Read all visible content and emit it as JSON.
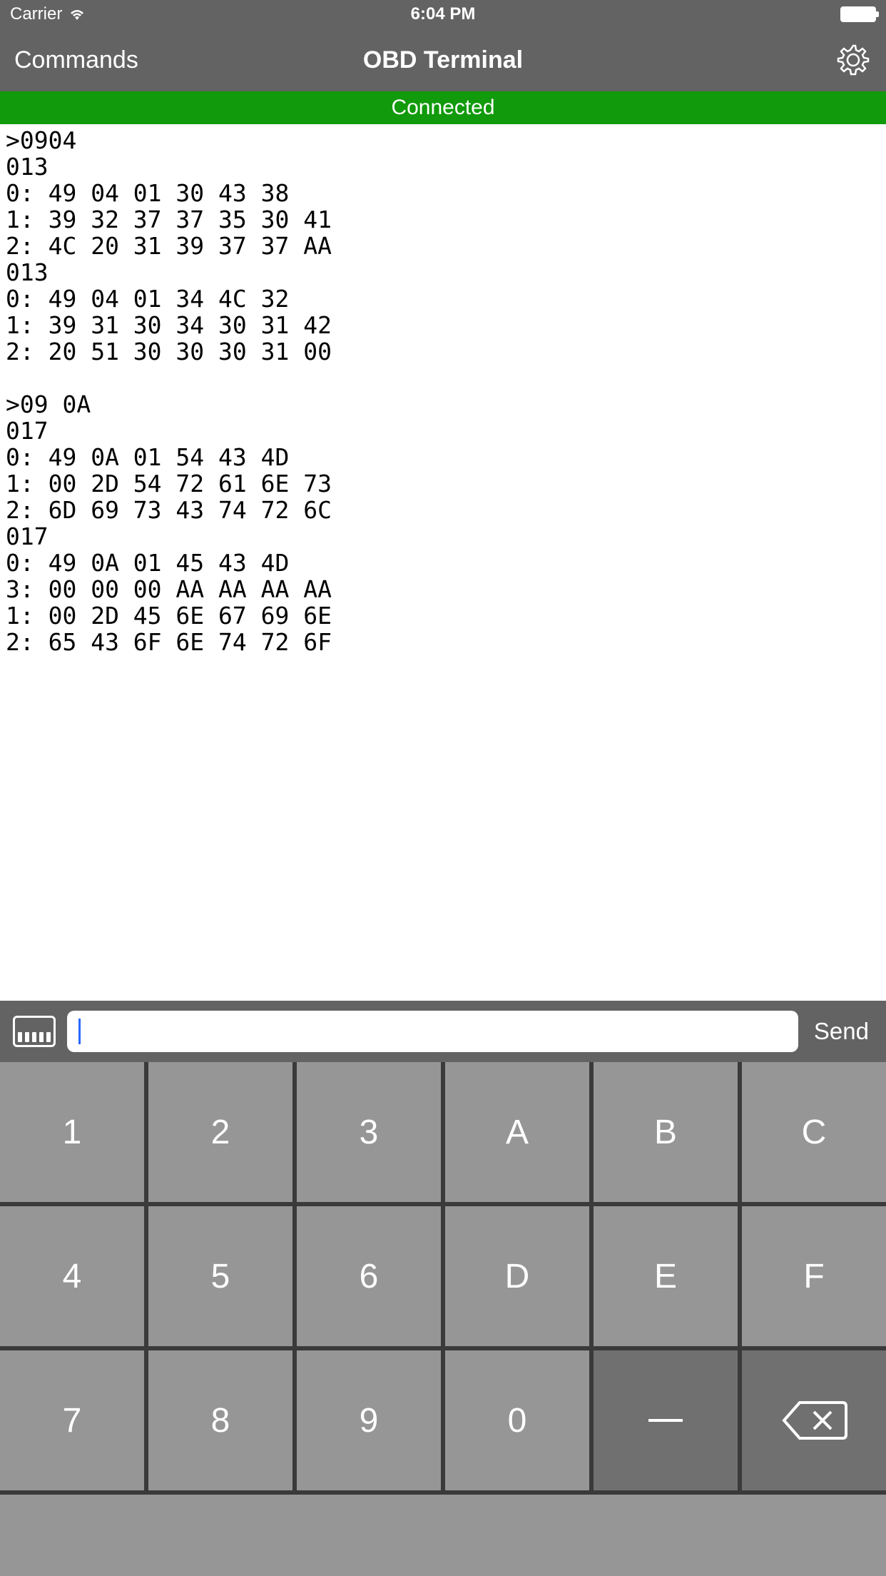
{
  "status_bar": {
    "carrier": "Carrier",
    "time": "6:04 PM"
  },
  "nav": {
    "left_label": "Commands",
    "title": "OBD Terminal"
  },
  "connection": {
    "status_label": "Connected",
    "banner_bg": "#119a0b"
  },
  "terminal": {
    "lines": [
      ">0904",
      "013",
      "0: 49 04 01 30 43 38",
      "1: 39 32 37 37 35 30 41",
      "2: 4C 20 31 39 37 37 AA",
      "013",
      "0: 49 04 01 34 4C 32",
      "1: 39 31 30 34 30 31 42",
      "2: 20 51 30 30 30 31 00",
      "",
      ">09 0A",
      "017",
      "0: 49 0A 01 54 43 4D",
      "1: 00 2D 54 72 61 6E 73",
      "2: 6D 69 73 43 74 72 6C",
      "017",
      "0: 49 0A 01 45 43 4D",
      "3: 00 00 00 AA AA AA AA",
      "1: 00 2D 45 6E 67 69 6E",
      "2: 65 43 6F 6E 74 72 6F"
    ]
  },
  "input_bar": {
    "value": "",
    "placeholder": "",
    "send_label": "Send"
  },
  "keypad": {
    "rows": [
      [
        "1",
        "2",
        "3",
        "A",
        "B",
        "C"
      ],
      [
        "4",
        "5",
        "6",
        "D",
        "E",
        "F"
      ],
      [
        "7",
        "8",
        "9",
        "0",
        "_",
        "⌫"
      ]
    ],
    "space_key_index": [
      2,
      4
    ],
    "backspace_key_index": [
      2,
      5
    ]
  },
  "colors": {
    "chrome_bg": "#636363",
    "key_bg": "#969696",
    "key_dark_bg": "#707070",
    "gap_bg": "#3a3a3a"
  }
}
